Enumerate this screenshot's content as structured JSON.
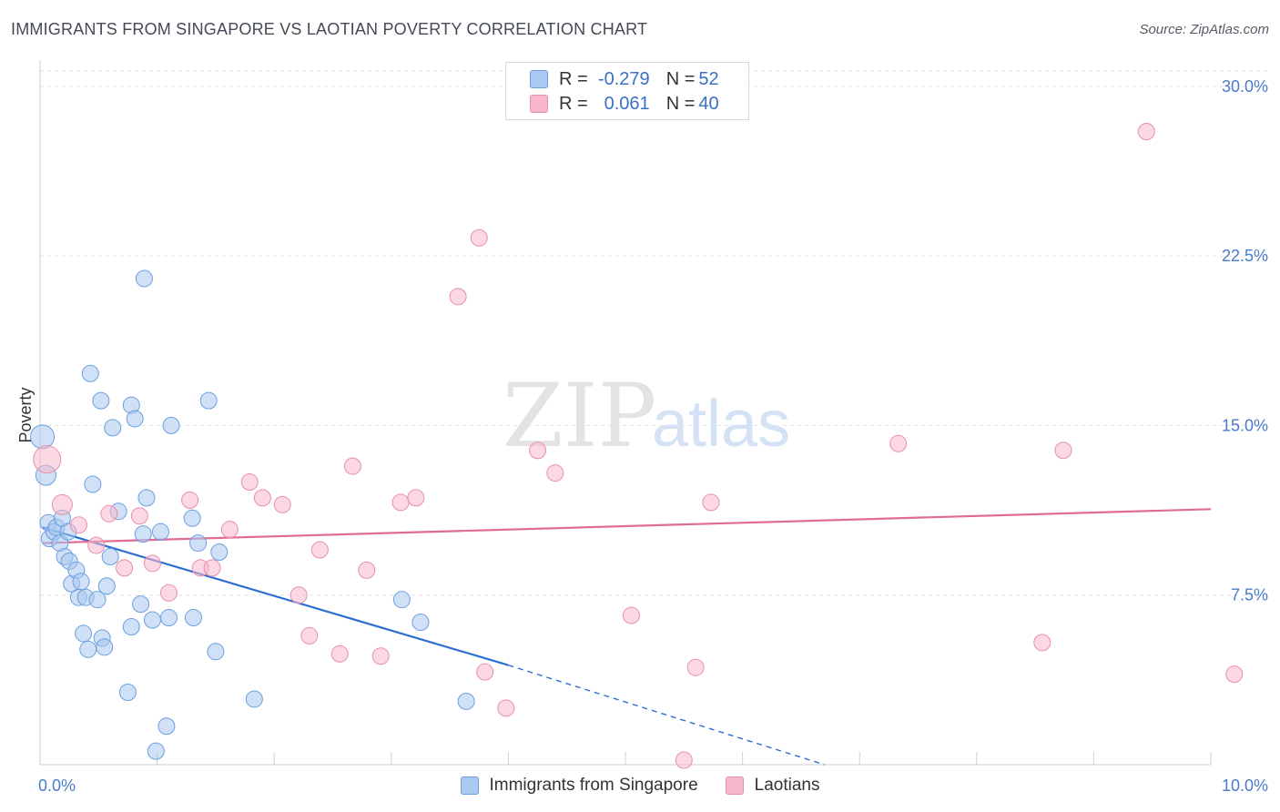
{
  "header": {
    "title": "IMMIGRANTS FROM SINGAPORE VS LAOTIAN POVERTY CORRELATION CHART",
    "source": "Source: ZipAtlas.com"
  },
  "watermark": {
    "part1": "ZIP",
    "part2": "atlas"
  },
  "legend": {
    "rows": [
      {
        "r_key": "R = ",
        "r_value": "-0.279",
        "n_key": "N = ",
        "n_value": "52",
        "color": "#aac8f0"
      },
      {
        "r_key": "R = ",
        "r_value": "0.061",
        "n_key": "N = ",
        "n_value": "40",
        "color": "#f7b8cc"
      }
    ]
  },
  "bottom_legend": {
    "items": [
      {
        "label": "Immigrants from Singapore",
        "color": "#aac8f0"
      },
      {
        "label": "Laotians",
        "color": "#f7b8cc"
      }
    ]
  },
  "chart_data": {
    "type": "scatter",
    "ylabel": "Poverty",
    "xlim": [
      0,
      10
    ],
    "ylim": [
      0,
      31
    ],
    "x_tick_labels": [
      "0.0%",
      "10.0%"
    ],
    "y_ticks": [
      7.5,
      15.0,
      22.5,
      30.0
    ],
    "y_tick_labels": [
      "7.5%",
      "15.0%",
      "22.5%",
      "30.0%"
    ],
    "grid": "horizontal dashed",
    "series": [
      {
        "name": "Immigrants from Singapore",
        "color": "#aac8f0",
        "stroke": "#6a9fe0",
        "trend_color": "#2d6ed1",
        "trend": {
          "x0": 0.02,
          "y0": 10.5,
          "x1": 4.0,
          "y1": 4.4,
          "dash_to_x": 6.7,
          "dash_to_y": 0.0
        },
        "points": [
          [
            0.02,
            14.5,
            13
          ],
          [
            0.05,
            12.8,
            11
          ],
          [
            0.07,
            10.7,
            9
          ],
          [
            0.08,
            10.0,
            9
          ],
          [
            0.12,
            10.3,
            9
          ],
          [
            0.14,
            10.5,
            9
          ],
          [
            0.17,
            9.8,
            9
          ],
          [
            0.19,
            10.9,
            9
          ],
          [
            0.21,
            9.2,
            9
          ],
          [
            0.24,
            10.3,
            9
          ],
          [
            0.25,
            9.0,
            9
          ],
          [
            0.27,
            8.0,
            9
          ],
          [
            0.31,
            8.6,
            9
          ],
          [
            0.33,
            7.4,
            9
          ],
          [
            0.35,
            8.1,
            9
          ],
          [
            0.37,
            5.8,
            9
          ],
          [
            0.39,
            7.4,
            9
          ],
          [
            0.41,
            5.1,
            9
          ],
          [
            0.43,
            17.3,
            9
          ],
          [
            0.45,
            12.4,
            9
          ],
          [
            0.49,
            7.3,
            9
          ],
          [
            0.52,
            16.1,
            9
          ],
          [
            0.53,
            5.6,
            9
          ],
          [
            0.55,
            5.2,
            9
          ],
          [
            0.57,
            7.9,
            9
          ],
          [
            0.6,
            9.2,
            9
          ],
          [
            0.62,
            14.9,
            9
          ],
          [
            0.67,
            11.2,
            9
          ],
          [
            0.75,
            3.2,
            9
          ],
          [
            0.78,
            15.9,
            9
          ],
          [
            0.78,
            6.1,
            9
          ],
          [
            0.81,
            15.3,
            9
          ],
          [
            0.86,
            7.1,
            9
          ],
          [
            0.88,
            10.2,
            9
          ],
          [
            0.89,
            21.5,
            9
          ],
          [
            0.91,
            11.8,
            9
          ],
          [
            0.96,
            6.4,
            9
          ],
          [
            0.99,
            0.6,
            9
          ],
          [
            1.03,
            10.3,
            9
          ],
          [
            1.08,
            1.7,
            9
          ],
          [
            1.1,
            6.5,
            9
          ],
          [
            1.12,
            15.0,
            9
          ],
          [
            1.3,
            10.9,
            9
          ],
          [
            1.31,
            6.5,
            9
          ],
          [
            1.35,
            9.8,
            9
          ],
          [
            1.44,
            16.1,
            9
          ],
          [
            1.5,
            5.0,
            9
          ],
          [
            1.53,
            9.4,
            9
          ],
          [
            1.83,
            2.9,
            9
          ],
          [
            3.09,
            7.3,
            9
          ],
          [
            3.25,
            6.3,
            9
          ],
          [
            3.64,
            2.8,
            9
          ]
        ]
      },
      {
        "name": "Laotians",
        "color": "#f7b8cc",
        "stroke": "#e88fad",
        "trend_color": "#e06b95",
        "trend": {
          "x0": 0.02,
          "y0": 9.8,
          "x1": 10.0,
          "y1": 11.3
        },
        "points": [
          [
            0.06,
            13.5,
            15
          ],
          [
            0.19,
            11.5,
            11
          ],
          [
            0.33,
            10.6,
            9
          ],
          [
            0.48,
            9.7,
            9
          ],
          [
            0.59,
            11.1,
            9
          ],
          [
            0.72,
            8.7,
            9
          ],
          [
            0.85,
            11.0,
            9
          ],
          [
            0.96,
            8.9,
            9
          ],
          [
            1.1,
            7.6,
            9
          ],
          [
            1.28,
            11.7,
            9
          ],
          [
            1.37,
            8.7,
            9
          ],
          [
            1.47,
            8.7,
            9
          ],
          [
            1.62,
            10.4,
            9
          ],
          [
            1.79,
            12.5,
            9
          ],
          [
            1.9,
            11.8,
            9
          ],
          [
            2.07,
            11.5,
            9
          ],
          [
            2.21,
            7.5,
            9
          ],
          [
            2.3,
            5.7,
            9
          ],
          [
            2.39,
            9.5,
            9
          ],
          [
            2.56,
            4.9,
            9
          ],
          [
            2.67,
            13.2,
            9
          ],
          [
            2.79,
            8.6,
            9
          ],
          [
            2.91,
            4.8,
            9
          ],
          [
            3.08,
            11.6,
            9
          ],
          [
            3.21,
            11.8,
            9
          ],
          [
            3.57,
            20.7,
            9
          ],
          [
            3.75,
            23.3,
            9
          ],
          [
            3.8,
            4.1,
            9
          ],
          [
            3.98,
            2.5,
            9
          ],
          [
            4.25,
            13.9,
            9
          ],
          [
            4.4,
            12.9,
            9
          ],
          [
            5.05,
            6.6,
            9
          ],
          [
            5.5,
            0.2,
            9
          ],
          [
            5.6,
            4.3,
            9
          ],
          [
            5.73,
            11.6,
            9
          ],
          [
            7.33,
            14.2,
            9
          ],
          [
            8.56,
            5.4,
            9
          ],
          [
            8.74,
            13.9,
            9
          ],
          [
            9.45,
            28.0,
            9
          ],
          [
            10.2,
            4.0,
            9
          ]
        ]
      }
    ]
  }
}
